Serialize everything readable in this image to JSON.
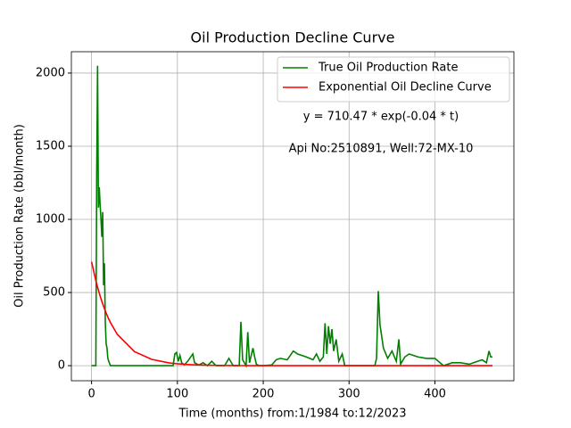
{
  "chart_data": {
    "type": "line",
    "title": "Oil Production Decline Curve",
    "xlabel": "Time (months) from:1/1984 to:12/2023",
    "ylabel": "Oil Production Rate (bbl/month)",
    "annotations": [
      "y = 710.47 * exp(-0.04 * t)",
      "Api No:2510891, Well:72-MX-10"
    ],
    "x": [
      0,
      5,
      6,
      7,
      8,
      9,
      10,
      11,
      12,
      13,
      14,
      15,
      16,
      17,
      18,
      19,
      20,
      22,
      30,
      50,
      70,
      90,
      95,
      97,
      99,
      101,
      103,
      105,
      108,
      112,
      118,
      120,
      125,
      130,
      135,
      140,
      145,
      155,
      160,
      165,
      172,
      174,
      176,
      180,
      182,
      184,
      188,
      190,
      192,
      195,
      200,
      210,
      215,
      220,
      228,
      235,
      240,
      250,
      258,
      262,
      266,
      270,
      272,
      274,
      276,
      278,
      280,
      282,
      285,
      288,
      292,
      295,
      300,
      310,
      320,
      330,
      332,
      334,
      336,
      338,
      340,
      345,
      350,
      355,
      358,
      360,
      365,
      370,
      380,
      390,
      400,
      410,
      420,
      430,
      440,
      450,
      455,
      460,
      463,
      465,
      467
    ],
    "series": [
      {
        "name": "True Oil Production Rate",
        "color": "#008000",
        "values": [
          0,
          0,
          1300,
          2050,
          1080,
          1220,
          1100,
          1000,
          880,
          1050,
          550,
          700,
          300,
          150,
          120,
          50,
          30,
          0,
          0,
          0,
          0,
          0,
          0,
          80,
          90,
          30,
          70,
          20,
          5,
          30,
          80,
          20,
          5,
          20,
          0,
          30,
          0,
          0,
          50,
          0,
          0,
          300,
          40,
          0,
          230,
          20,
          120,
          60,
          10,
          0,
          0,
          5,
          40,
          50,
          40,
          100,
          80,
          60,
          40,
          80,
          30,
          60,
          290,
          80,
          270,
          150,
          250,
          100,
          180,
          30,
          80,
          0,
          0,
          0,
          0,
          0,
          50,
          510,
          280,
          200,
          120,
          50,
          100,
          30,
          180,
          10,
          60,
          80,
          60,
          50,
          50,
          0,
          20,
          20,
          10,
          30,
          40,
          20,
          100,
          60,
          60
        ]
      },
      {
        "name": "Exponential Oil Decline Curve",
        "color": "#ff0000",
        "values": [
          710.47,
          581.7,
          558.9,
          537.0,
          515.9,
          495.7,
          476.2,
          457.6,
          439.6,
          422.4,
          405.8,
          389.9,
          374.6,
          359.9,
          345.8,
          332.3,
          319.2,
          294.7,
          214.0,
          96.2,
          43.2,
          19.4,
          15.9,
          14.7,
          13.5,
          12.5,
          11.5,
          10.7,
          9.4,
          8.1,
          6.3,
          5.8,
          4.8,
          3.9,
          3.2,
          2.6,
          2.2,
          1.4,
          1.2,
          1.0,
          0.7,
          0.7,
          0.6,
          0.5,
          0.5,
          0.4,
          0.4,
          0.4,
          0.3,
          0.3,
          0.2,
          0.1,
          0.1,
          0.1,
          0.1,
          0.1,
          0.1,
          0.1,
          0,
          0,
          0,
          0,
          0,
          0,
          0,
          0,
          0,
          0,
          0,
          0,
          0,
          0,
          0,
          0,
          0,
          0,
          0,
          0,
          0,
          0,
          0,
          0,
          0,
          0,
          0,
          0,
          0,
          0,
          0,
          0,
          0,
          0,
          0,
          0,
          0,
          0,
          0,
          0,
          0,
          0,
          0
        ]
      }
    ],
    "xlim": [
      -23.5,
      492
    ],
    "ylim": [
      -103,
      2146
    ],
    "xticks": [
      0,
      100,
      200,
      300,
      400
    ],
    "yticks": [
      0,
      500,
      1000,
      1500,
      2000
    ],
    "grid": true,
    "legend": "upper right"
  }
}
